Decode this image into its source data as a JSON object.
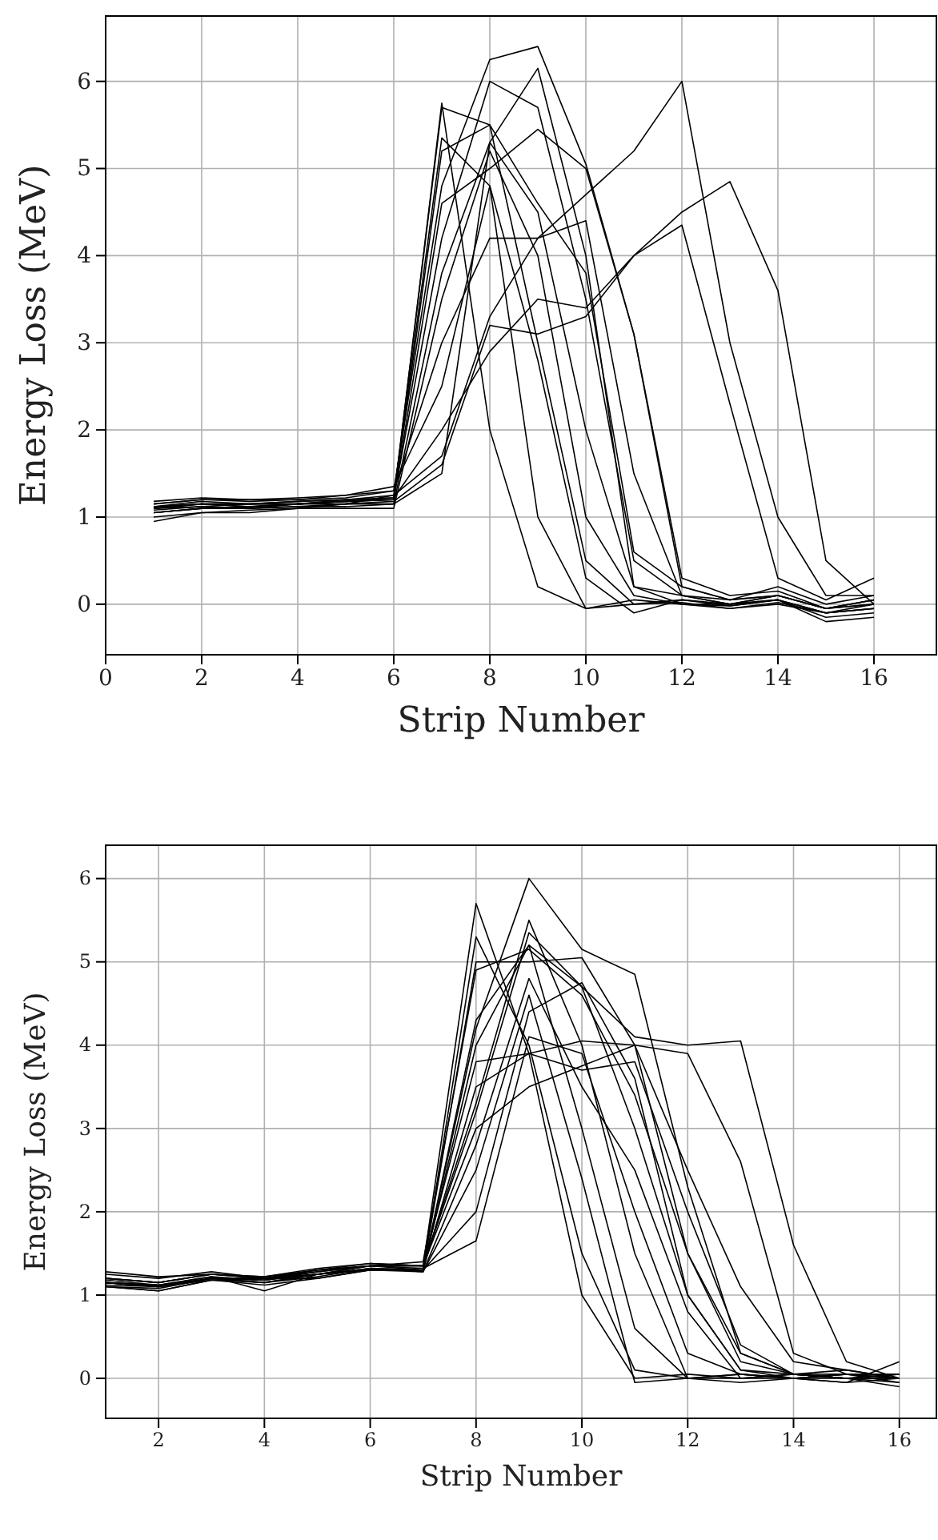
{
  "chart_data": [
    {
      "type": "line",
      "xlabel": "Strip Number",
      "ylabel": "Energy Loss (MeV)",
      "x": [
        1,
        2,
        3,
        4,
        5,
        6,
        7,
        8,
        9,
        10,
        11,
        12,
        13,
        14,
        15,
        16
      ],
      "xlim": [
        0,
        17.3
      ],
      "xticks": [
        0,
        2,
        4,
        6,
        8,
        10,
        12,
        14,
        16
      ],
      "ylim": [
        -0.58,
        6.75
      ],
      "yticks": [
        0,
        1,
        2,
        3,
        4,
        5,
        6
      ],
      "grid": true,
      "marker": "none",
      "line_style": "solid",
      "series": [
        {
          "color": "#000000",
          "values": [
            1.1,
            1.15,
            1.12,
            1.15,
            1.18,
            1.2,
            5.75,
            2.0,
            0.2,
            -0.05,
            0.0,
            0.02,
            -0.05,
            0.0,
            -0.1,
            -0.05
          ]
        },
        {
          "color": "#000000",
          "values": [
            1.05,
            1.1,
            1.1,
            1.12,
            1.15,
            1.25,
            5.35,
            4.8,
            1.0,
            -0.05,
            0.05,
            0.0,
            -0.02,
            0.05,
            -0.15,
            -0.1
          ]
        },
        {
          "color": "#000000",
          "values": [
            1.15,
            1.2,
            1.18,
            1.2,
            1.22,
            1.3,
            4.8,
            6.25,
            6.4,
            5.05,
            3.1,
            0.2,
            0.05,
            0.1,
            -0.05,
            0.05
          ]
        },
        {
          "color": "#000000",
          "values": [
            1.0,
            1.05,
            1.08,
            1.1,
            1.15,
            1.15,
            3.8,
            5.3,
            6.15,
            4.0,
            0.2,
            0.0,
            -0.05,
            0.02,
            -0.1,
            -0.05
          ]
        },
        {
          "color": "#000000",
          "values": [
            1.12,
            1.18,
            1.15,
            1.18,
            1.2,
            1.22,
            4.2,
            6.0,
            5.7,
            3.5,
            0.5,
            0.1,
            0.0,
            0.05,
            -0.1,
            0.0
          ]
        },
        {
          "color": "#000000",
          "values": [
            1.08,
            1.12,
            1.15,
            1.15,
            1.18,
            1.2,
            4.6,
            5.0,
            5.45,
            5.0,
            3.1,
            0.3,
            0.1,
            0.15,
            -0.05,
            0.05
          ]
        },
        {
          "color": "#000000",
          "values": [
            1.1,
            1.15,
            1.12,
            1.15,
            1.2,
            1.25,
            1.7,
            3.3,
            4.2,
            4.7,
            5.2,
            6.0,
            3.0,
            1.0,
            0.1,
            0.1
          ]
        },
        {
          "color": "#000000",
          "values": [
            1.05,
            1.1,
            1.12,
            1.15,
            1.15,
            1.18,
            1.6,
            3.2,
            3.1,
            3.3,
            4.0,
            4.5,
            4.85,
            3.6,
            0.5,
            0.0
          ]
        },
        {
          "color": "#000000",
          "values": [
            1.12,
            1.15,
            1.15,
            1.18,
            1.2,
            1.22,
            2.0,
            2.9,
            3.5,
            3.4,
            4.0,
            4.35,
            2.3,
            0.3,
            0.05,
            0.3
          ]
        },
        {
          "color": "#000000",
          "values": [
            1.15,
            1.2,
            1.2,
            1.2,
            1.25,
            1.3,
            3.0,
            4.2,
            4.2,
            4.4,
            1.5,
            0.1,
            0.0,
            0.1,
            -0.05,
            0.05
          ]
        },
        {
          "color": "#000000",
          "values": [
            1.1,
            1.12,
            1.1,
            1.15,
            1.18,
            1.2,
            5.2,
            5.5,
            3.0,
            0.5,
            0.0,
            0.05,
            -0.02,
            0.05,
            -0.1,
            -0.05
          ]
        },
        {
          "color": "#000000",
          "values": [
            0.95,
            1.05,
            1.05,
            1.1,
            1.1,
            1.1,
            3.5,
            5.2,
            4.0,
            1.0,
            0.1,
            0.0,
            0.0,
            0.05,
            -0.2,
            -0.15
          ]
        },
        {
          "color": "#000000",
          "values": [
            1.18,
            1.22,
            1.2,
            1.22,
            1.25,
            1.35,
            2.5,
            4.8,
            2.8,
            0.3,
            -0.1,
            0.05,
            0.0,
            0.1,
            -0.05,
            0.0
          ]
        },
        {
          "color": "#000000",
          "values": [
            1.05,
            1.1,
            1.1,
            1.12,
            1.12,
            1.15,
            1.5,
            5.3,
            4.5,
            2.0,
            0.2,
            0.1,
            0.05,
            0.1,
            -0.05,
            0.0
          ]
        },
        {
          "color": "#000000",
          "values": [
            1.12,
            1.15,
            1.15,
            1.15,
            1.18,
            1.22,
            5.7,
            5.5,
            4.6,
            3.8,
            0.6,
            0.2,
            0.05,
            0.2,
            0.0,
            0.1
          ]
        }
      ]
    },
    {
      "type": "line",
      "xlabel": "Strip Number",
      "ylabel": "Energy Loss (MeV)",
      "x": [
        1,
        2,
        3,
        4,
        5,
        6,
        7,
        8,
        9,
        10,
        11,
        12,
        13,
        14,
        15,
        16
      ],
      "xlim": [
        1,
        16.7
      ],
      "xticks": [
        2,
        4,
        6,
        8,
        10,
        12,
        14,
        16
      ],
      "ylim": [
        -0.48,
        6.4
      ],
      "yticks": [
        0,
        1,
        2,
        3,
        4,
        5,
        6
      ],
      "grid": true,
      "marker": "none",
      "line_style": "solid",
      "series": [
        {
          "color": "#000000",
          "values": [
            1.15,
            1.1,
            1.2,
            1.15,
            1.25,
            1.35,
            1.35,
            5.7,
            3.9,
            1.0,
            0.0,
            0.05,
            0.0,
            0.0,
            0.05,
            0.0
          ]
        },
        {
          "color": "#000000",
          "values": [
            1.1,
            1.05,
            1.18,
            1.2,
            1.2,
            1.3,
            1.3,
            5.3,
            4.0,
            1.5,
            0.1,
            0.0,
            0.05,
            0.0,
            0.0,
            -0.05
          ]
        },
        {
          "color": "#000000",
          "values": [
            1.2,
            1.15,
            1.25,
            1.2,
            1.3,
            1.35,
            1.3,
            4.2,
            6.0,
            5.15,
            4.85,
            2.3,
            0.3,
            0.05,
            0.0,
            0.05
          ]
        },
        {
          "color": "#000000",
          "values": [
            1.15,
            1.1,
            1.2,
            1.15,
            1.25,
            1.3,
            1.3,
            5.0,
            5.0,
            5.05,
            4.0,
            1.5,
            0.2,
            0.05,
            0.05,
            0.0
          ]
        },
        {
          "color": "#000000",
          "values": [
            1.15,
            1.12,
            1.22,
            1.18,
            1.28,
            1.35,
            1.35,
            3.2,
            5.35,
            4.7,
            4.1,
            4.0,
            4.05,
            1.6,
            0.2,
            0.0
          ]
        },
        {
          "color": "#000000",
          "values": [
            1.1,
            1.08,
            1.2,
            1.2,
            1.25,
            1.32,
            1.3,
            3.5,
            3.9,
            4.05,
            4.0,
            3.9,
            2.6,
            0.3,
            0.05,
            0.05
          ]
        },
        {
          "color": "#000000",
          "values": [
            1.2,
            1.15,
            1.25,
            1.22,
            1.3,
            1.35,
            1.35,
            3.0,
            3.5,
            3.75,
            4.0,
            2.5,
            1.1,
            0.2,
            0.1,
            0.0
          ]
        },
        {
          "color": "#000000",
          "values": [
            1.15,
            1.1,
            1.2,
            1.18,
            1.25,
            1.3,
            1.3,
            4.3,
            5.2,
            3.0,
            0.6,
            0.0,
            0.0,
            0.05,
            0.0,
            0.05
          ]
        },
        {
          "color": "#000000",
          "values": [
            1.12,
            1.1,
            1.18,
            1.15,
            1.22,
            1.32,
            1.28,
            2.5,
            4.6,
            2.4,
            -0.05,
            0.0,
            0.05,
            0.0,
            -0.05,
            0.0
          ]
        },
        {
          "color": "#000000",
          "values": [
            1.18,
            1.12,
            1.22,
            1.05,
            1.25,
            1.35,
            1.32,
            1.65,
            4.1,
            3.9,
            2.0,
            0.3,
            0.05,
            0.0,
            0.05,
            -0.05
          ]
        },
        {
          "color": "#000000",
          "values": [
            1.15,
            1.1,
            1.2,
            1.2,
            1.25,
            1.3,
            1.3,
            4.0,
            5.2,
            4.7,
            3.0,
            1.0,
            0.1,
            0.05,
            0.0,
            0.0
          ]
        },
        {
          "color": "#000000",
          "values": [
            1.25,
            1.2,
            1.28,
            1.2,
            1.3,
            1.38,
            1.35,
            3.3,
            5.5,
            4.0,
            1.5,
            0.0,
            -0.05,
            0.0,
            0.05,
            0.05
          ]
        },
        {
          "color": "#000000",
          "values": [
            1.1,
            1.05,
            1.18,
            1.12,
            1.2,
            1.3,
            1.28,
            2.8,
            4.8,
            3.5,
            2.5,
            0.8,
            0.0,
            0.05,
            0.0,
            0.0
          ]
        },
        {
          "color": "#000000",
          "values": [
            1.2,
            1.15,
            1.25,
            1.2,
            1.28,
            1.35,
            1.4,
            4.9,
            5.15,
            4.6,
            3.4,
            1.5,
            0.3,
            0.05,
            0.1,
            0.0
          ]
        },
        {
          "color": "#000000",
          "values": [
            1.15,
            1.12,
            1.2,
            1.18,
            1.25,
            1.32,
            1.3,
            2.0,
            4.4,
            4.75,
            3.6,
            1.0,
            0.1,
            0.0,
            -0.05,
            0.2
          ]
        },
        {
          "color": "#000000",
          "values": [
            1.28,
            1.22,
            1.25,
            1.22,
            1.32,
            1.38,
            1.35,
            3.8,
            3.9,
            3.7,
            3.8,
            2.0,
            0.4,
            0.05,
            0.0,
            -0.1
          ]
        }
      ]
    }
  ]
}
